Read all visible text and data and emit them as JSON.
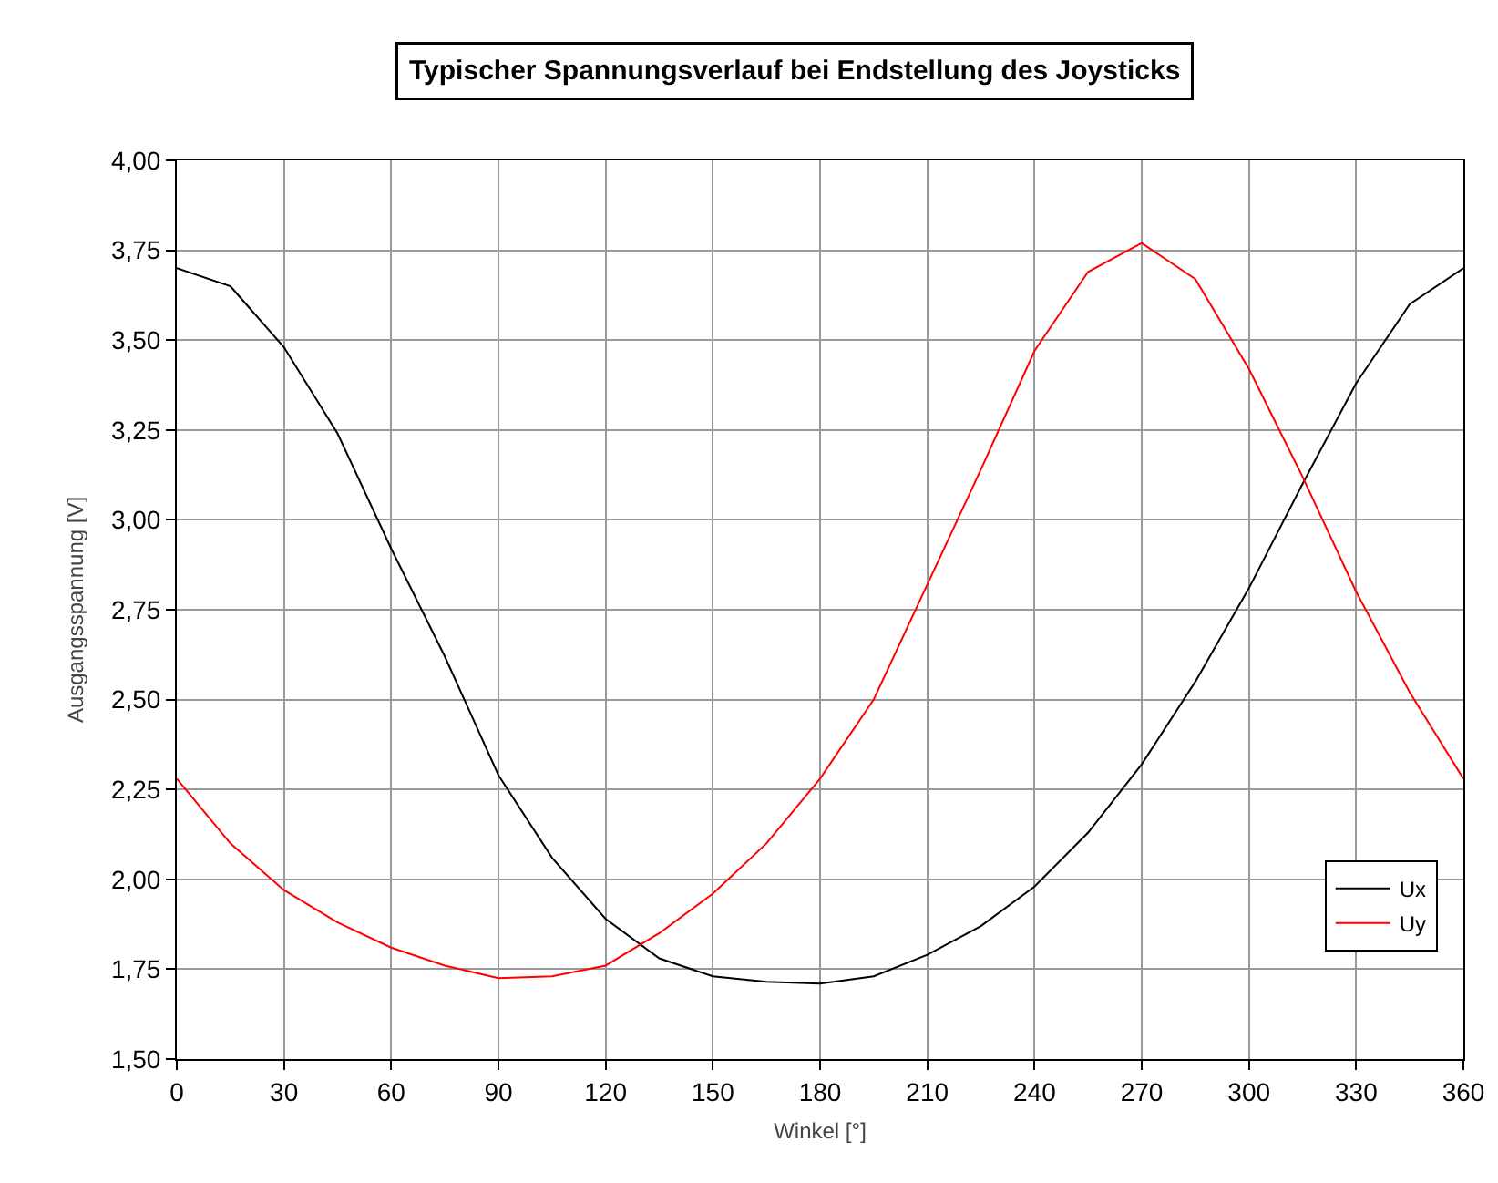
{
  "chart_data": {
    "type": "line",
    "title": "Typischer Spannungsverlauf bei Endstellung des Joysticks",
    "xlabel": "Winkel [°]",
    "ylabel": "Ausgangsspannung [V]",
    "x": [
      0,
      15,
      30,
      45,
      60,
      75,
      90,
      105,
      120,
      135,
      150,
      165,
      180,
      195,
      210,
      225,
      240,
      255,
      270,
      285,
      300,
      315,
      330,
      345,
      360
    ],
    "series": [
      {
        "name": "Ux",
        "color": "#000000",
        "values": [
          3.7,
          3.65,
          3.48,
          3.24,
          2.92,
          2.62,
          2.29,
          2.06,
          1.89,
          1.78,
          1.73,
          1.715,
          1.71,
          1.73,
          1.79,
          1.87,
          1.98,
          2.13,
          2.32,
          2.55,
          2.81,
          3.1,
          3.38,
          3.6,
          3.7
        ]
      },
      {
        "name": "Uy",
        "color": "#ff0000",
        "values": [
          2.28,
          2.1,
          1.97,
          1.88,
          1.81,
          1.76,
          1.725,
          1.73,
          1.76,
          1.85,
          1.96,
          2.1,
          2.28,
          2.5,
          2.82,
          3.14,
          3.47,
          3.69,
          3.77,
          3.67,
          3.42,
          3.12,
          2.8,
          2.52,
          2.28
        ]
      }
    ],
    "xlim": [
      0,
      360
    ],
    "xticks": [
      0,
      30,
      60,
      90,
      120,
      150,
      180,
      210,
      240,
      270,
      300,
      330,
      360
    ],
    "ylim": [
      1.5,
      4.0
    ],
    "yticks": [
      {
        "value": 1.5,
        "label": "1,50"
      },
      {
        "value": 1.75,
        "label": "1,75"
      },
      {
        "value": 2.0,
        "label": "2,00"
      },
      {
        "value": 2.25,
        "label": "2,25"
      },
      {
        "value": 2.5,
        "label": "2,50"
      },
      {
        "value": 2.75,
        "label": "2,75"
      },
      {
        "value": 3.0,
        "label": "3,00"
      },
      {
        "value": 3.25,
        "label": "3,25"
      },
      {
        "value": 3.5,
        "label": "3,50"
      },
      {
        "value": 3.75,
        "label": "3,75"
      },
      {
        "value": 4.0,
        "label": "4,00"
      }
    ],
    "grid": true,
    "legend": "bottom right",
    "marker": "none",
    "line_style": "solid"
  }
}
